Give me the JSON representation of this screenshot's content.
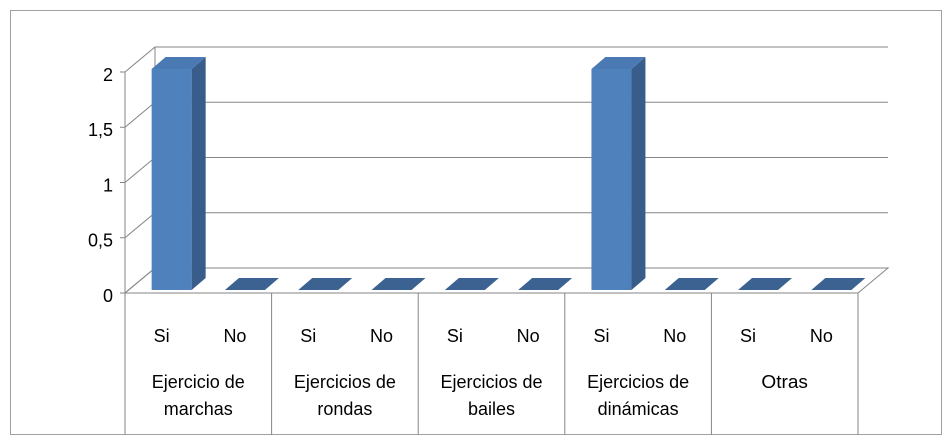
{
  "chart_data": {
    "type": "bar3d",
    "categories": [
      "Si",
      "No",
      "Si",
      "No",
      "Si",
      "No",
      "Si",
      "No",
      "Si",
      "No"
    ],
    "groups": [
      "Ejercicio de marchas",
      "Ejercicios de rondas",
      "Ejercicios de bailes",
      "Ejercicios de dinámicas",
      "Otras"
    ],
    "values": [
      2,
      0,
      0,
      0,
      0,
      0,
      2,
      0,
      0,
      0
    ],
    "color": "#4f81bd",
    "ylim": [
      0,
      2
    ],
    "yticks": [
      0,
      {
        "value": 0.5,
        "label": "0,5"
      },
      1,
      {
        "value": 1.5,
        "label": "1,5"
      },
      2
    ],
    "grid": true
  }
}
